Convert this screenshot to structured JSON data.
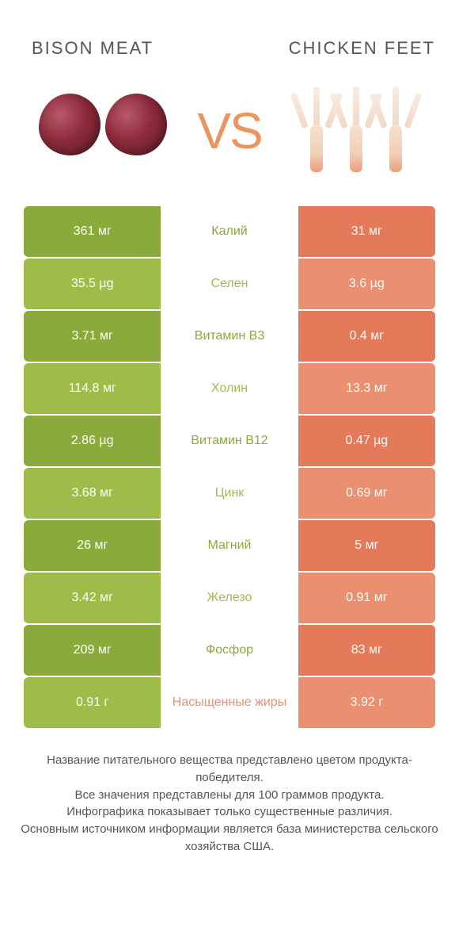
{
  "header": {
    "left_title": "BISON MEAT",
    "right_title": "CHICKEN FEET",
    "vs_label": "VS"
  },
  "colors": {
    "green_dark": "#8aaa3b",
    "green_light": "#9fbb4a",
    "coral_dark": "#e57a5a",
    "coral_light": "#ea8f6f",
    "text_white": "#ffffff",
    "text_mid": "#555555"
  },
  "comparison": {
    "rows": [
      {
        "left": "361 мг",
        "label": "Калий",
        "right": "31 мг",
        "winner": "left"
      },
      {
        "left": "35.5 µg",
        "label": "Селен",
        "right": "3.6 µg",
        "winner": "left"
      },
      {
        "left": "3.71 мг",
        "label": "Витамин B3",
        "right": "0.4 мг",
        "winner": "left"
      },
      {
        "left": "114.8 мг",
        "label": "Холин",
        "right": "13.3 мг",
        "winner": "left"
      },
      {
        "left": "2.86 µg",
        "label": "Витамин B12",
        "right": "0.47 µg",
        "winner": "left"
      },
      {
        "left": "3.68 мг",
        "label": "Цинк",
        "right": "0.69 мг",
        "winner": "left"
      },
      {
        "left": "26 мг",
        "label": "Магний",
        "right": "5 мг",
        "winner": "left"
      },
      {
        "left": "3.42 мг",
        "label": "Железо",
        "right": "0.91 мг",
        "winner": "left"
      },
      {
        "left": "209 мг",
        "label": "Фосфор",
        "right": "83 мг",
        "winner": "left"
      },
      {
        "left": "0.91 г",
        "label": "Насыщенные жиры",
        "right": "3.92 г",
        "winner": "right"
      }
    ]
  },
  "footer": {
    "line1": "Название питательного вещества представлено цветом продукта-победителя.",
    "line2": "Все значения представлены для 100 граммов продукта.",
    "line3": "Инфографика показывает только существенные различия.",
    "line4": "Основным источником информации является база министерства сельского хозяйства США."
  }
}
